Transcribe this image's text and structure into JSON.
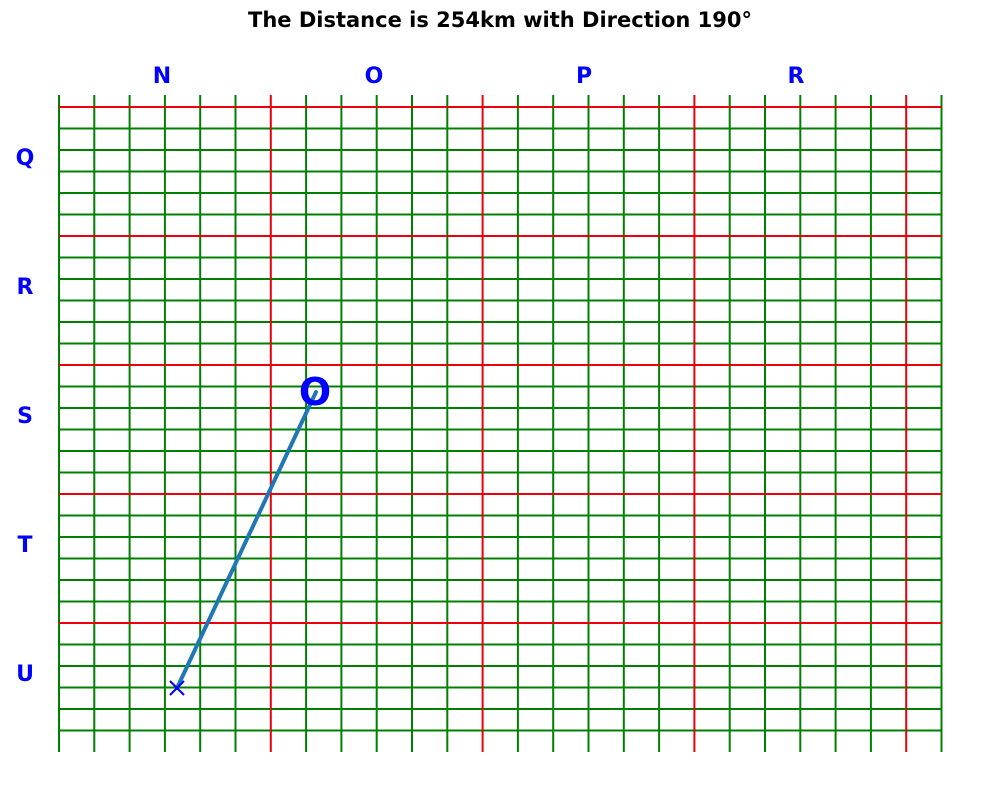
{
  "title": "The Distance is 254km with Direction 190°",
  "grid": {
    "columns": [
      "N",
      "O",
      "P",
      "R"
    ],
    "rows": [
      "Q",
      "R",
      "S",
      "T",
      "U"
    ],
    "major_color": "#e8000b",
    "minor_color": "#008000",
    "label_color": "#0000ff"
  },
  "route": {
    "origin_label": "O",
    "origin_marker": "circle-marker",
    "end_marker": "x-marker",
    "line_color": "#1f77b4",
    "distance_km": 254,
    "direction_deg": 190
  }
}
